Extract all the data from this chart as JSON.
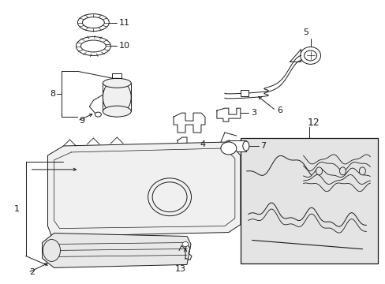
{
  "background_color": "#ffffff",
  "line_color": "#1a1a1a",
  "gray_fill": "#e8e8e8",
  "light_gray": "#f0f0f0",
  "box_gray": "#e4e4e4",
  "figsize": [
    4.89,
    3.6
  ],
  "dpi": 100
}
